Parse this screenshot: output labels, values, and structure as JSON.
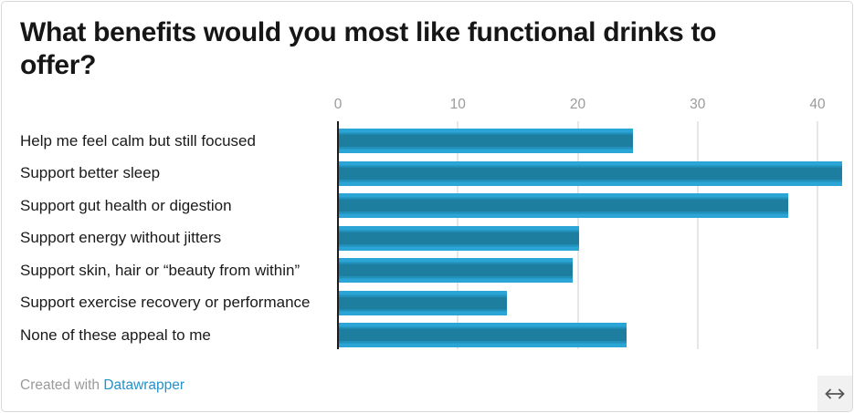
{
  "title": "What benefits would you most like functional drinks to offer?",
  "chart_data": {
    "type": "bar",
    "orientation": "horizontal",
    "title": "What benefits would you most like functional drinks to offer?",
    "categories": [
      "Help me feel calm but still focused",
      "Support better sleep",
      "Support gut health or digestion",
      "Support energy without jitters",
      "Support skin, hair or “beauty from within”",
      "Support exercise recovery or performance",
      "None of these appeal to me"
    ],
    "values": [
      24.5,
      42,
      37.5,
      20,
      19.5,
      14,
      24
    ],
    "x_ticks": [
      0,
      10,
      20,
      30,
      40
    ],
    "axis_range": [
      0,
      42
    ],
    "xlabel": "",
    "ylabel": "",
    "grid": "vertical",
    "legend": "none",
    "bar_color_light": "#2aa5d5",
    "bar_color_mid": "#2191bc",
    "bar_color_dark": "#1d7ea0"
  },
  "colors": {
    "title": "#161616",
    "category_label": "#1a1a1a",
    "axis_tick_label": "#9b9b9b",
    "gridline": "#e7e7e7",
    "baseline": "#1a1c1f",
    "link": "#2492c9",
    "footer_text": "#9a9a9a",
    "card_border": "#d8d8d8",
    "resize_button_bg": "#f1f1f1",
    "resize_arrow": "#555555"
  },
  "footer": {
    "created_with": "Created with ",
    "link_label": "Datawrapper"
  },
  "icons": {
    "resize": "left-right-arrow-icon"
  }
}
